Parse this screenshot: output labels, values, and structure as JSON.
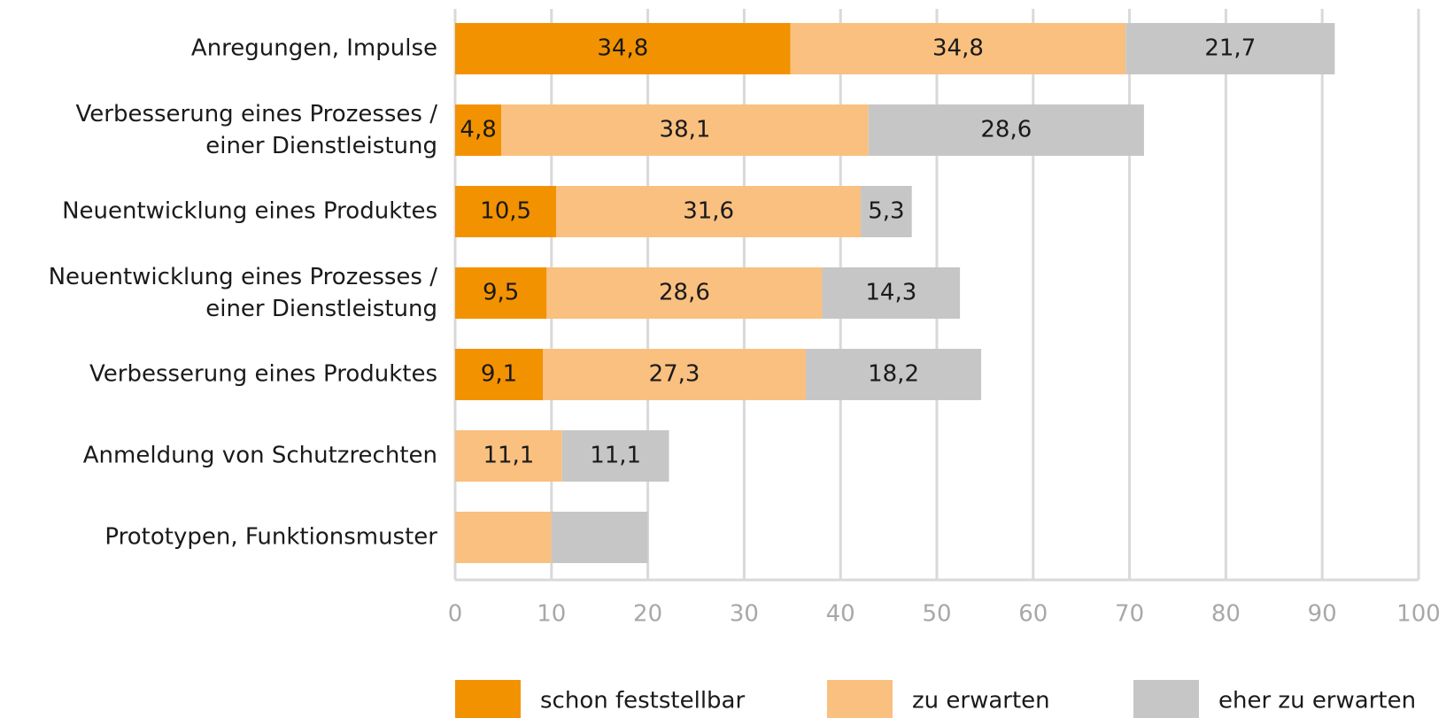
{
  "chart_data": {
    "type": "stacked-bar-horizontal",
    "categories": [
      "Anregungen, Impulse",
      "Verbesserung eines Prozesses /\neiner Dienstleistung",
      "Neuentwicklung eines Produktes",
      "Neuentwicklung eines Prozesses /\neiner Dienstleistung",
      "Verbesserung eines Produktes",
      "Anmeldung von Schutzrechten",
      "Prototypen, Funktionsmuster"
    ],
    "series": [
      {
        "name": "schon feststellbar",
        "color": "#f39200",
        "values": [
          34.8,
          4.8,
          10.5,
          9.5,
          9.1,
          null,
          null
        ],
        "value_labels": [
          "34,8",
          "4,8",
          "10,5",
          "9,5",
          "9,1",
          null,
          null
        ]
      },
      {
        "name": "zu erwarten",
        "color": "#f9c080",
        "values": [
          34.8,
          38.1,
          31.6,
          28.6,
          27.3,
          11.1,
          10
        ],
        "value_labels": [
          "34,8",
          "38,1",
          "31,6",
          "28,6",
          "27,3",
          "11,1",
          null
        ]
      },
      {
        "name": "eher zu erwarten",
        "color": "#c6c6c6",
        "values": [
          21.7,
          28.6,
          5.3,
          14.3,
          18.2,
          11.1,
          10
        ],
        "value_labels": [
          "21,7",
          "28,6",
          "5,3",
          "14,3",
          "18,2",
          "11,1",
          null
        ]
      }
    ],
    "xlim": [
      0,
      100
    ],
    "xticks": [
      0,
      10,
      20,
      30,
      40,
      50,
      60,
      70,
      80,
      90,
      100
    ],
    "grid": true
  }
}
